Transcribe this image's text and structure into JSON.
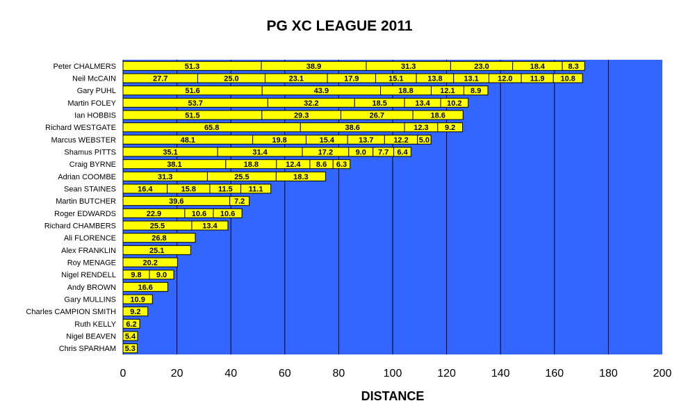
{
  "chart_data": {
    "type": "bar",
    "orientation": "horizontal",
    "stacked": true,
    "title": "PG XC LEAGUE 2011",
    "xlabel": "DISTANCE",
    "ylabel": "",
    "xlim": [
      0,
      200
    ],
    "x_ticks": [
      "0",
      "20",
      "40",
      "60",
      "80",
      "100",
      "120",
      "140",
      "160",
      "180",
      "200"
    ],
    "grid": "vertical",
    "plot_background": "#3366ff",
    "bar_color": "#ffff00",
    "bar_edge_color": "#000000",
    "categories": [
      "Peter CHALMERS",
      "Neil McCAIN",
      "Gary PUHL",
      "Martin FOLEY",
      "Ian HOBBIS",
      "Richard WESTGATE",
      "Marcus WEBSTER",
      "Shamus PITTS",
      "Craig BYRNE",
      "Adrian COOMBE",
      "Sean STAINES",
      "Martin BUTCHER",
      "Roger EDWARDS",
      "Richard CHAMBERS",
      "Ali FLORENCE",
      "Alex FRANKLIN",
      "Roy MENAGE",
      "Nigel RENDELL",
      "Andy BROWN",
      "Gary MULLINS",
      "Charles CAMPION SMITH",
      "Ruth KELLY",
      "Nigel BEAVEN",
      "Chris SPARHAM"
    ],
    "segments": [
      [
        51.3,
        38.9,
        31.3,
        23.0,
        18.4,
        8.3
      ],
      [
        27.7,
        25.0,
        23.1,
        17.9,
        15.1,
        13.8,
        13.1,
        12.0,
        11.9,
        10.8
      ],
      [
        51.6,
        43.9,
        18.8,
        12.1,
        8.9
      ],
      [
        53.7,
        32.2,
        18.5,
        13.4,
        10.2
      ],
      [
        51.5,
        29.3,
        26.7,
        18.6
      ],
      [
        65.8,
        38.6,
        12.3,
        9.2
      ],
      [
        48.1,
        19.8,
        15.4,
        13.7,
        12.2,
        5.0
      ],
      [
        35.1,
        31.4,
        17.2,
        9.0,
        7.7,
        6.4
      ],
      [
        38.1,
        18.8,
        12.4,
        8.6,
        6.3
      ],
      [
        31.3,
        25.5,
        18.3
      ],
      [
        16.4,
        15.8,
        11.5,
        11.1
      ],
      [
        39.6,
        7.2
      ],
      [
        22.9,
        10.6,
        10.6
      ],
      [
        25.5,
        13.4
      ],
      [
        26.8
      ],
      [
        25.1
      ],
      [
        20.2
      ],
      [
        9.8,
        9.0
      ],
      [
        16.6
      ],
      [
        10.9
      ],
      [
        9.2
      ],
      [
        6.2
      ],
      [
        5.4
      ],
      [
        5.3
      ]
    ]
  }
}
